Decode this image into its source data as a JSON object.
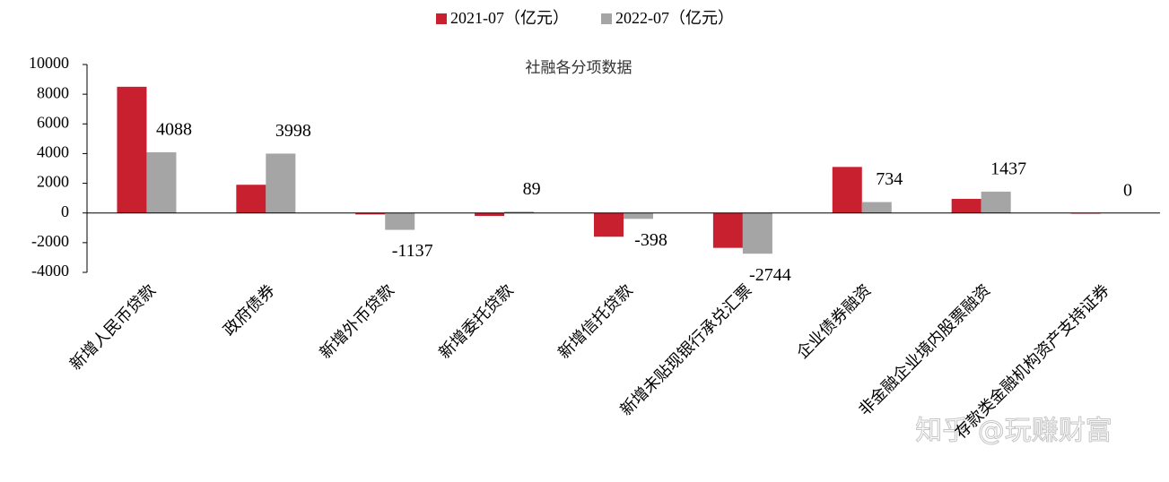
{
  "chart_data": {
    "type": "bar",
    "title": "社融各分项数据",
    "categories": [
      "新增人民币贷款",
      "政府债券",
      "新增外币贷款",
      "新增委托贷款",
      "新增信托贷款",
      "新增未贴现银行承兑汇票",
      "企业债券融资",
      "非金融企业境内股票融资",
      "存款类金融机构资产支持证券"
    ],
    "series": [
      {
        "name": "2021-07（亿元）",
        "color": "#c8202f",
        "values": [
          8500,
          1900,
          -100,
          -200,
          -1600,
          -2350,
          3100,
          950,
          -50
        ]
      },
      {
        "name": "2022-07（亿元）",
        "color": "#a5a5a5",
        "values": [
          4088,
          3998,
          -1137,
          89,
          -398,
          -2744,
          734,
          1437,
          0
        ],
        "show_labels": true
      }
    ],
    "ylim": [
      -4000,
      10000
    ],
    "yticks": [
      -4000,
      -2000,
      0,
      2000,
      4000,
      6000,
      8000,
      10000
    ],
    "legend": "top",
    "grid": false,
    "watermark": "知乎 @玩赚财富"
  }
}
